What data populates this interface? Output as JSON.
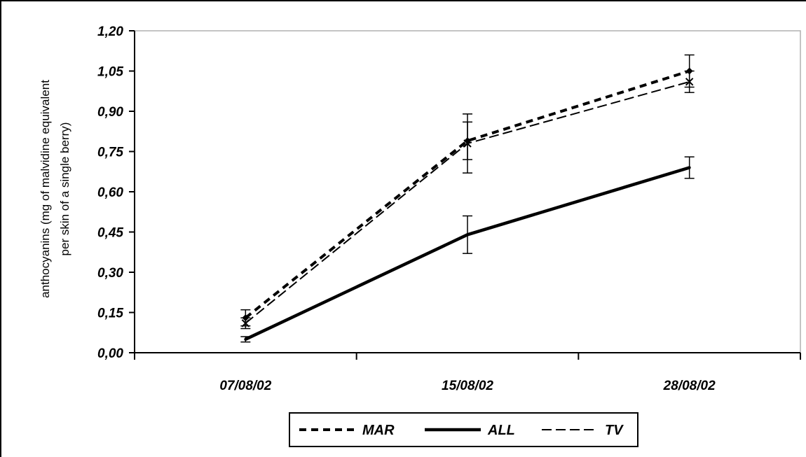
{
  "chart_data": {
    "type": "line",
    "ylabel_lines": [
      "anthocyanins (mg of malvidine equivalent",
      "per skin of a single berry)"
    ],
    "xlabel": "",
    "categories": [
      "07/08/02",
      "15/08/02",
      "28/08/02"
    ],
    "yticks": [
      "0,00",
      "0,15",
      "0,30",
      "0,45",
      "0,60",
      "0,75",
      "0,90",
      "1,05",
      "1,20"
    ],
    "ylim": [
      0,
      1.2
    ],
    "grid": false,
    "legend_position": "bottom",
    "series": [
      {
        "name": "MAR",
        "values": [
          0.13,
          0.79,
          1.05
        ],
        "errors": [
          0.03,
          0.07,
          0.06
        ],
        "color": "#000000",
        "style": "dashed-bold"
      },
      {
        "name": "ALL",
        "values": [
          0.05,
          0.44,
          0.69
        ],
        "errors": [
          0.01,
          0.07,
          0.04
        ],
        "color": "#000000",
        "style": "solid"
      },
      {
        "name": "TV",
        "values": [
          0.11,
          0.78,
          1.01
        ],
        "errors": [
          0.02,
          0.11,
          0.04
        ],
        "color": "#000000",
        "style": "dashed-thin"
      }
    ]
  }
}
